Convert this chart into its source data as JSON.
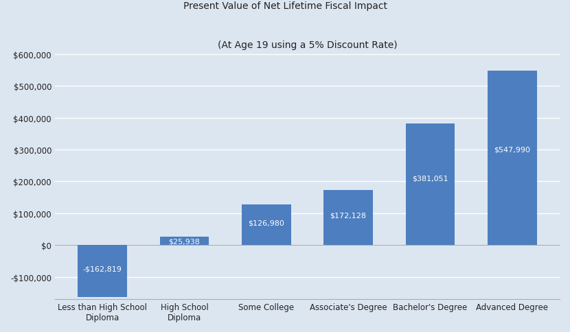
{
  "title": "Present Value of Net Lifetime Fiscal Impact",
  "subtitle": "(At Age 19 using a 5% Discount Rate)",
  "categories": [
    "Less than High School\nDiploma",
    "High School\nDiploma",
    "Some College",
    "Associate's Degree",
    "Bachelor's Degree",
    "Advanced Degree"
  ],
  "values": [
    -162819,
    25938,
    126980,
    172128,
    381051,
    547990
  ],
  "bar_color": "#4d7ebf",
  "bar_labels": [
    "-$162,819",
    "$25,938",
    "$126,980",
    "$172,128",
    "$381,051",
    "$547,990"
  ],
  "ylim_min": -170000,
  "ylim_max": 610000,
  "yticks": [
    -100000,
    0,
    100000,
    200000,
    300000,
    400000,
    500000,
    600000
  ],
  "background_color": "#dce6f1",
  "plot_bg_color": "#dce6f1",
  "grid_color": "#ffffff",
  "title_fontsize": 10,
  "subtitle_fontsize": 9,
  "label_fontsize": 8,
  "tick_fontsize": 8.5
}
